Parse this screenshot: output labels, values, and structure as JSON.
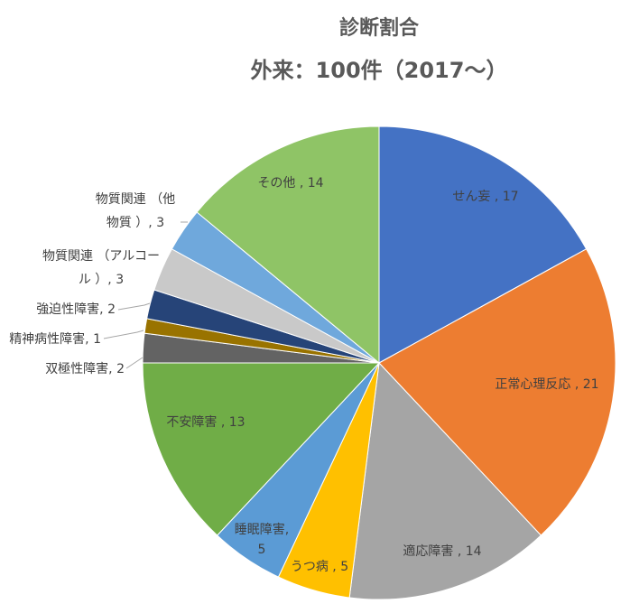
{
  "chart_data": {
    "type": "pie",
    "title": "診断割合",
    "subtitle": "外来：100件（2017～）",
    "slices": [
      {
        "name": "せん妄",
        "value": 17,
        "color": "#4472c4",
        "label_lines": [
          "せん妄 , 17"
        ]
      },
      {
        "name": "正常心理反応",
        "value": 21,
        "color": "#ed7d31",
        "label_lines": [
          "正常心理反応 , 21"
        ]
      },
      {
        "name": "適応障害",
        "value": 14,
        "color": "#a5a5a5",
        "label_lines": [
          "適応障害 , 14"
        ]
      },
      {
        "name": "うつ病",
        "value": 5,
        "color": "#ffc000",
        "label_lines": [
          "うつ病 , 5"
        ]
      },
      {
        "name": "睡眠障害",
        "value": 5,
        "color": "#5b9bd5",
        "label_lines": [
          "睡眠障害,",
          "5"
        ]
      },
      {
        "name": "不安障害",
        "value": 13,
        "color": "#70ad47",
        "label_lines": [
          "不安障害 , 13"
        ]
      },
      {
        "name": "双極性障害",
        "value": 2,
        "color": "#636363",
        "label_lines": [
          "双極性障害, 2"
        ]
      },
      {
        "name": "精神病性障害",
        "value": 1,
        "color": "#997300",
        "label_lines": [
          "精神病性障害, 1"
        ]
      },
      {
        "name": "強迫性障害",
        "value": 2,
        "color": "#264478",
        "label_lines": [
          "強迫性障害, 2"
        ]
      },
      {
        "name": "物質関連 （アルコール）",
        "value": 3,
        "color": "#c9c9c9",
        "label_lines": [
          "物質関連 （アルコー",
          "ル ）, 3"
        ]
      },
      {
        "name": "物質関連 （他物質）",
        "value": 3,
        "color": "#6fa8dc",
        "label_lines": [
          "物質関連 （他",
          "物質 ）, 3"
        ]
      },
      {
        "name": "その他",
        "value": 14,
        "color": "#8fc466",
        "label_lines": [
          "その他 , 14"
        ]
      }
    ]
  }
}
